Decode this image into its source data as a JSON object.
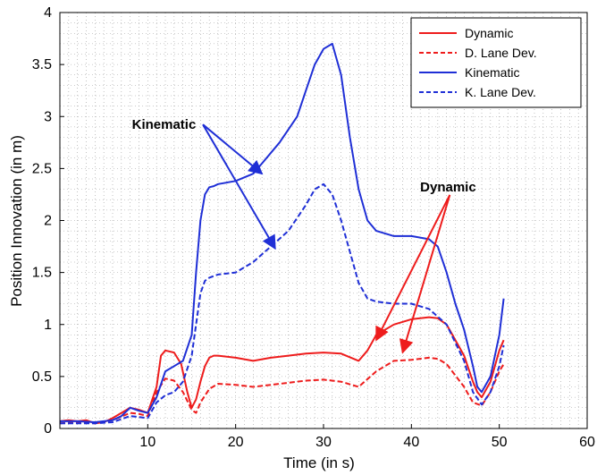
{
  "chart_data": {
    "type": "line",
    "xlabel": "Time (in s)",
    "ylabel": "Position Innovation (in m)",
    "xlim": [
      0,
      60
    ],
    "ylim": [
      0,
      4
    ],
    "xticks": [
      10,
      20,
      30,
      40,
      50,
      60
    ],
    "yticks": [
      0,
      0.5,
      1,
      1.5,
      2,
      2.5,
      3,
      3.5,
      4
    ],
    "grid": "dotted",
    "legend_position": "top-right",
    "colors": {
      "red": "#ee1c1c",
      "blue": "#1f2fd6"
    },
    "series": [
      {
        "name": "Dynamic",
        "color": "#ee1c1c",
        "dash": "solid",
        "x": [
          0,
          1,
          2,
          3,
          4,
          5,
          6,
          7,
          8,
          9,
          10,
          11,
          11.5,
          12,
          13,
          13.8,
          14.5,
          15,
          15.5,
          16,
          16.5,
          17,
          17.5,
          18,
          20,
          22,
          24,
          26,
          28,
          30,
          32,
          34,
          35,
          36,
          38,
          40,
          42,
          43,
          44,
          45,
          46,
          47,
          47.5,
          48,
          49,
          50,
          50.5
        ],
        "y": [
          0.07,
          0.08,
          0.07,
          0.08,
          0.05,
          0.06,
          0.1,
          0.15,
          0.2,
          0.18,
          0.15,
          0.4,
          0.7,
          0.75,
          0.73,
          0.62,
          0.35,
          0.2,
          0.28,
          0.45,
          0.6,
          0.68,
          0.7,
          0.7,
          0.68,
          0.65,
          0.68,
          0.7,
          0.72,
          0.73,
          0.72,
          0.65,
          0.75,
          0.9,
          1.0,
          1.05,
          1.07,
          1.06,
          1.0,
          0.85,
          0.7,
          0.45,
          0.35,
          0.3,
          0.45,
          0.75,
          0.85
        ]
      },
      {
        "name": "D. Lane Dev.",
        "color": "#ee1c1c",
        "dash": "dashed",
        "x": [
          0,
          2,
          4,
          6,
          8,
          9,
          10,
          11,
          12,
          13,
          14,
          15,
          15.5,
          16,
          17,
          18,
          20,
          22,
          24,
          26,
          28,
          30,
          32,
          34,
          36,
          38,
          40,
          42,
          43,
          44,
          46,
          47,
          48,
          49,
          50,
          50.5
        ],
        "y": [
          0.05,
          0.06,
          0.05,
          0.08,
          0.15,
          0.14,
          0.12,
          0.35,
          0.48,
          0.46,
          0.35,
          0.18,
          0.15,
          0.25,
          0.38,
          0.43,
          0.42,
          0.4,
          0.42,
          0.44,
          0.46,
          0.47,
          0.45,
          0.4,
          0.55,
          0.65,
          0.66,
          0.68,
          0.67,
          0.62,
          0.4,
          0.25,
          0.22,
          0.35,
          0.55,
          0.62
        ]
      },
      {
        "name": "Kinematic",
        "color": "#1f2fd6",
        "dash": "solid",
        "x": [
          0,
          2,
          4,
          6,
          7,
          8,
          9,
          10,
          11,
          12,
          13,
          14,
          15,
          15.5,
          16,
          16.5,
          17,
          17.5,
          18,
          20,
          22,
          23,
          25,
          27,
          28,
          29,
          30,
          31,
          32,
          33,
          34,
          35,
          36,
          38,
          40,
          42,
          43,
          44,
          45,
          46,
          47,
          47.5,
          48,
          49,
          50,
          50.5
        ],
        "y": [
          0.07,
          0.07,
          0.06,
          0.08,
          0.12,
          0.2,
          0.17,
          0.15,
          0.3,
          0.55,
          0.6,
          0.65,
          0.9,
          1.5,
          2.0,
          2.25,
          2.32,
          2.33,
          2.35,
          2.38,
          2.45,
          2.55,
          2.75,
          3.0,
          3.25,
          3.5,
          3.65,
          3.7,
          3.4,
          2.8,
          2.3,
          2.0,
          1.9,
          1.85,
          1.85,
          1.82,
          1.75,
          1.5,
          1.2,
          0.95,
          0.6,
          0.4,
          0.35,
          0.5,
          0.9,
          1.25
        ]
      },
      {
        "name": "K. Lane Dev.",
        "color": "#1f2fd6",
        "dash": "dashed",
        "x": [
          0,
          2,
          4,
          6,
          8,
          10,
          11,
          12,
          13,
          14,
          15,
          15.5,
          16,
          16.5,
          17,
          18,
          20,
          22,
          24,
          26,
          28,
          29,
          30,
          31,
          32,
          33,
          34,
          35,
          36,
          38,
          40,
          42,
          44,
          46,
          47,
          48,
          49,
          50,
          50.5
        ],
        "y": [
          0.05,
          0.05,
          0.05,
          0.06,
          0.12,
          0.1,
          0.25,
          0.32,
          0.35,
          0.45,
          0.7,
          1.0,
          1.3,
          1.42,
          1.45,
          1.48,
          1.5,
          1.6,
          1.75,
          1.9,
          2.15,
          2.3,
          2.35,
          2.25,
          2.0,
          1.7,
          1.4,
          1.25,
          1.22,
          1.2,
          1.2,
          1.15,
          1.0,
          0.65,
          0.35,
          0.23,
          0.35,
          0.6,
          0.8
        ]
      }
    ],
    "annotations": [
      {
        "text": "Kinematic",
        "x": 8.2,
        "y": 2.88,
        "color": "#1f2fd6",
        "arrows_to": [
          [
            23.0,
            2.45
          ],
          [
            24.5,
            1.73
          ]
        ]
      },
      {
        "text": "Dynamic",
        "x": 41.0,
        "y": 2.28,
        "color": "#ee1c1c",
        "arrows_to": [
          [
            36.0,
            0.85
          ],
          [
            39.0,
            0.73
          ]
        ]
      }
    ]
  }
}
